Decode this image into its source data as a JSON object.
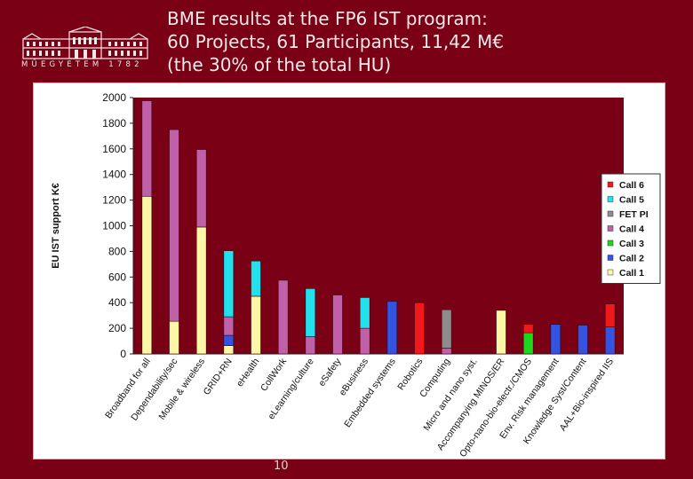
{
  "slide": {
    "title_lines": [
      "BME results at the FP6 IST program:",
      "60 Projects, 61 Participants, 11,42 M€",
      "(the 30% of the total HU)"
    ],
    "logo_motto": "MŰEGYETEM 1782",
    "page_number": "10"
  },
  "colors": {
    "background": "#7a0016",
    "plot_border": "#c9b3b3",
    "Call 1": "#fbf7a6",
    "Call 2": "#3353e0",
    "Call 3": "#1fd61f",
    "Call 4": "#c060a8",
    "FET PI": "#8c8c8c",
    "Call 5": "#22e0ec",
    "Call 6": "#f01818"
  },
  "chart_data": {
    "type": "bar",
    "stacked": true,
    "ylabel": "EU IST support K€",
    "xlabel": "",
    "ylim": [
      0,
      2000
    ],
    "yticks": [
      0,
      200,
      400,
      600,
      800,
      1000,
      1200,
      1400,
      1600,
      1800,
      2000
    ],
    "legend_position": "right",
    "categories": [
      "Broadband for all",
      "Dependability/sec",
      "Mobile & wireless",
      "GRID+RN",
      "eHealth",
      "CollWork",
      "eLearning/culture",
      "eSafety",
      "eBusiness",
      "Embedded systems",
      "Robotics",
      "Computing",
      "Micro and nano syst.",
      "Accompanying MINOS/ER",
      "Opto-nano-bio-electr./CMOS",
      "Env. Risk management",
      "Knowledge Syst/Content",
      "AAL+Bio-inspired IIS"
    ],
    "series": [
      {
        "name": "Call 1",
        "values": [
          1230,
          255,
          990,
          65,
          450,
          0,
          0,
          0,
          0,
          0,
          0,
          0,
          0,
          340,
          0,
          0,
          0,
          0
        ]
      },
      {
        "name": "Call 2",
        "values": [
          0,
          0,
          0,
          80,
          0,
          0,
          0,
          0,
          0,
          410,
          0,
          0,
          0,
          0,
          0,
          230,
          225,
          210
        ]
      },
      {
        "name": "Call 3",
        "values": [
          0,
          0,
          0,
          0,
          0,
          0,
          0,
          0,
          0,
          0,
          0,
          0,
          0,
          0,
          165,
          0,
          0,
          0
        ]
      },
      {
        "name": "Call 4",
        "values": [
          745,
          1495,
          605,
          145,
          0,
          575,
          135,
          460,
          200,
          0,
          0,
          45,
          0,
          0,
          0,
          0,
          0,
          0
        ]
      },
      {
        "name": "FET PI",
        "values": [
          0,
          0,
          0,
          0,
          0,
          0,
          0,
          0,
          0,
          0,
          0,
          300,
          0,
          0,
          0,
          0,
          0,
          0
        ]
      },
      {
        "name": "Call 5",
        "values": [
          0,
          0,
          0,
          515,
          275,
          0,
          375,
          0,
          240,
          0,
          0,
          0,
          0,
          0,
          0,
          0,
          0,
          0
        ]
      },
      {
        "name": "Call 6",
        "values": [
          0,
          0,
          0,
          0,
          0,
          0,
          0,
          0,
          0,
          0,
          400,
          0,
          0,
          0,
          65,
          0,
          0,
          180
        ]
      }
    ],
    "legend_order": [
      "Call 6",
      "Call 5",
      "FET PI",
      "Call 4",
      "Call 3",
      "Call 2",
      "Call 1"
    ]
  }
}
